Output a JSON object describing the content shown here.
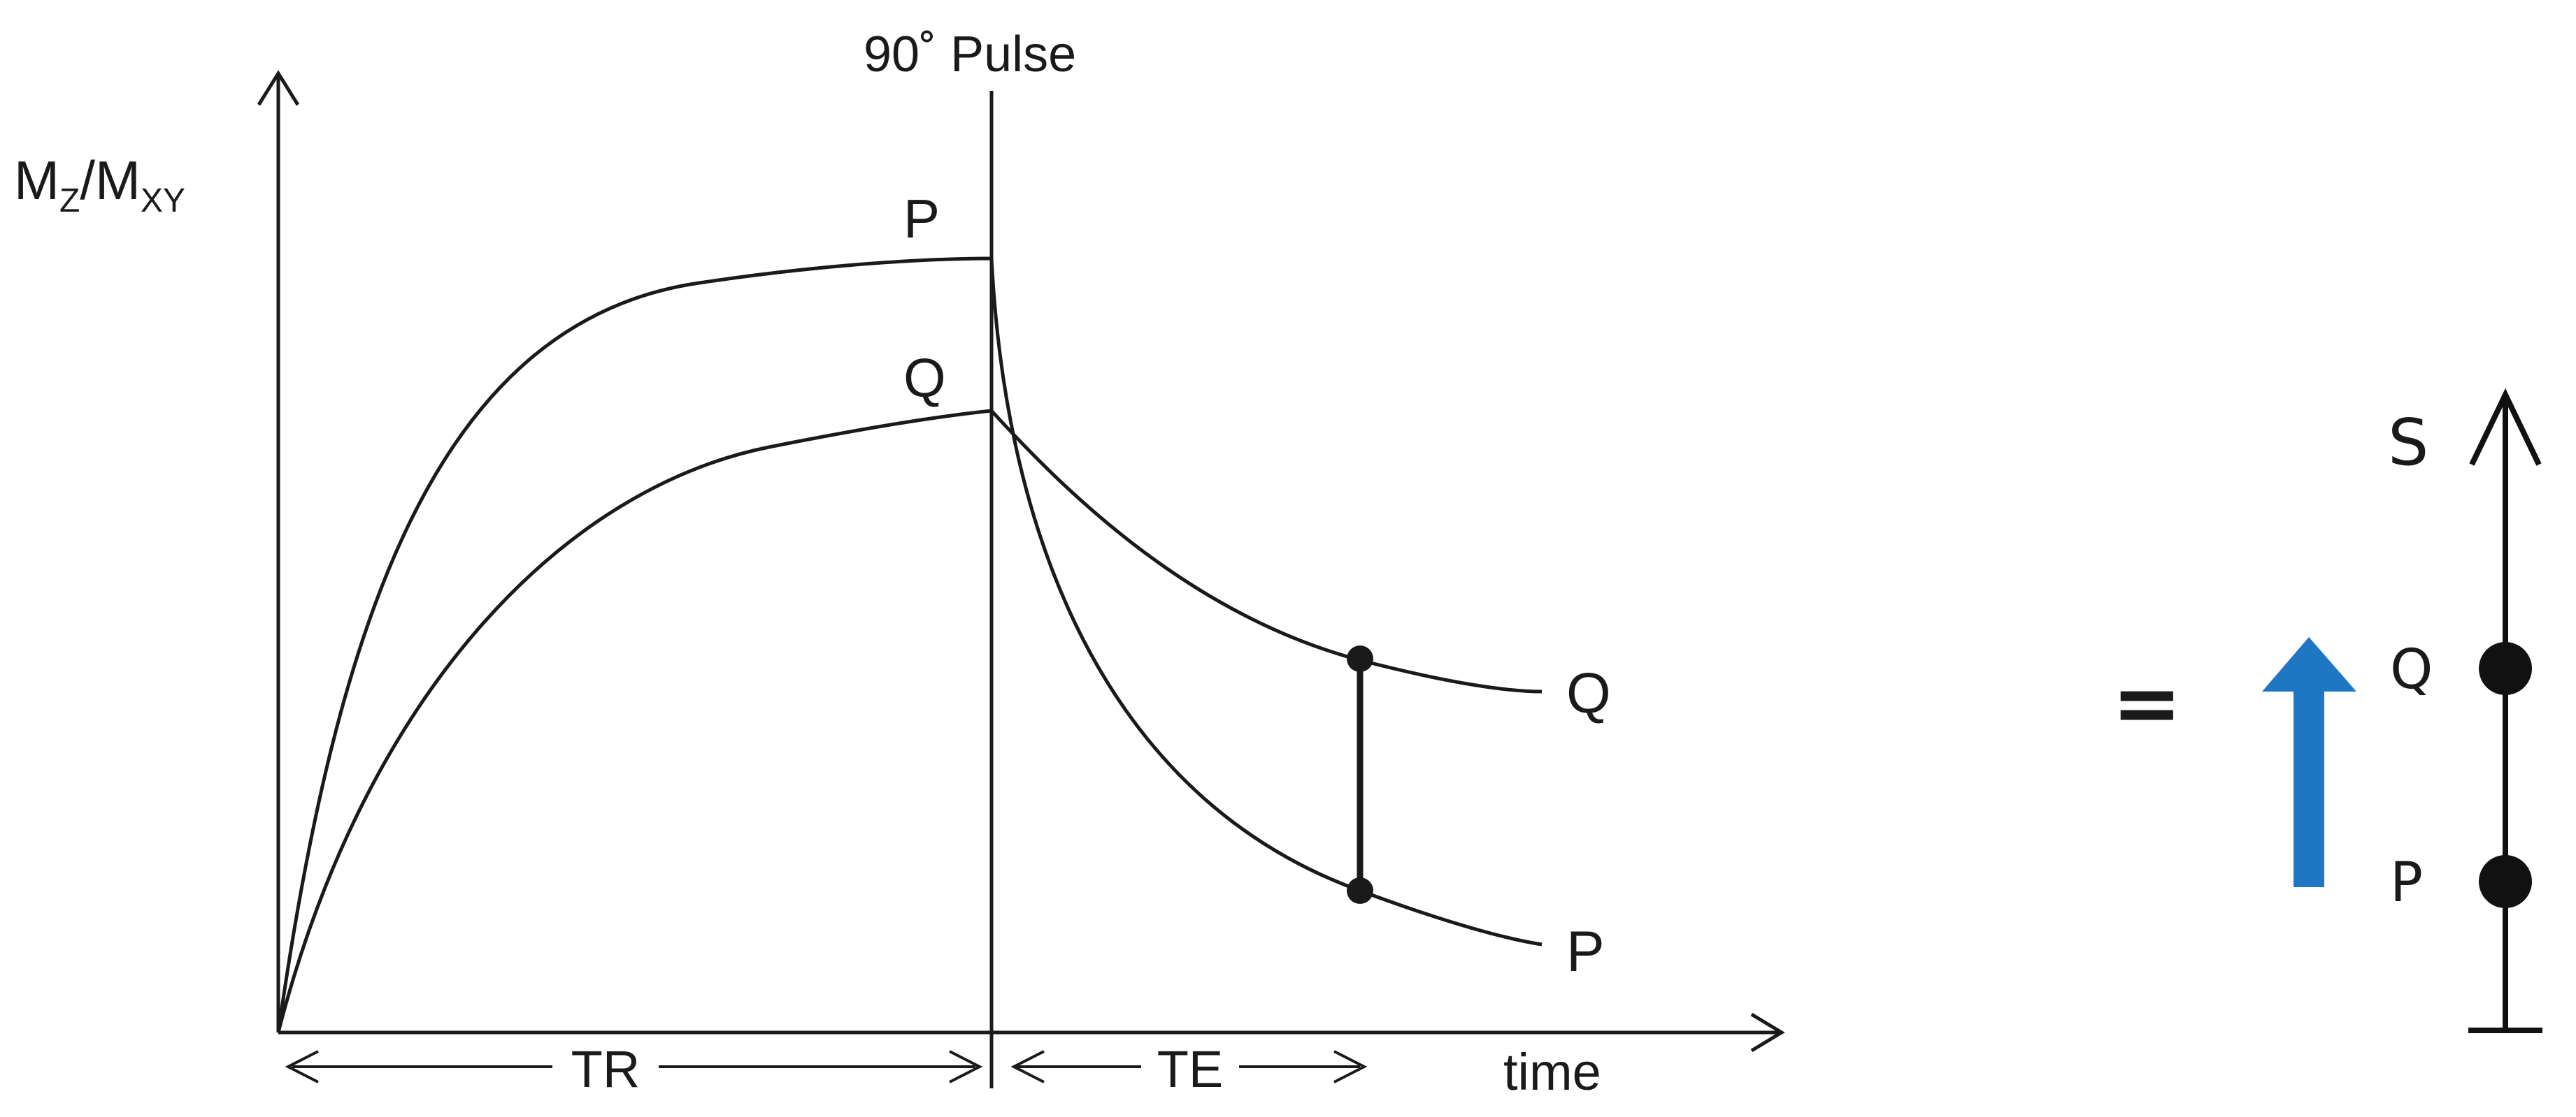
{
  "main_chart": {
    "y_axis": {
      "label_main": "M",
      "sub_z": "Z",
      "slash": "/",
      "label_main2": "M",
      "sub_xy": "XY"
    },
    "x_axis_label": "time",
    "pulse_label": "90˚ Pulse",
    "curves": {
      "recovery_p_label": "P",
      "recovery_q_label": "Q",
      "decay_q_label": "Q",
      "decay_p_label": "P"
    },
    "intervals": {
      "tr_label": "TR",
      "te_label": "TE"
    }
  },
  "signal_scale": {
    "equals": "=",
    "axis_label": "S",
    "point_q_label": "Q",
    "point_p_label": "P",
    "arrow_color": "#1f77c4"
  }
}
